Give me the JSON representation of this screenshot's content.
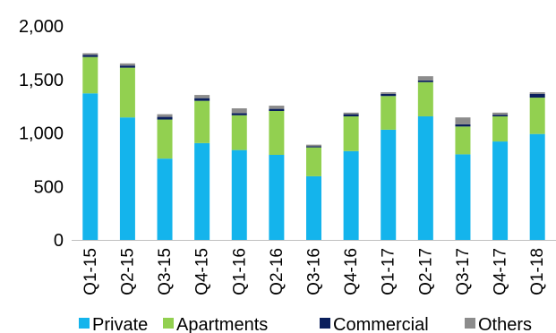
{
  "chart_data": {
    "type": "bar",
    "stacked": true,
    "title": "",
    "xlabel": "",
    "ylabel": "",
    "ylim": [
      0,
      2000
    ],
    "yticks": [
      0,
      500,
      1000,
      1500,
      2000
    ],
    "ytick_labels": [
      "0",
      "500",
      "1,000",
      "1,500",
      "2,000"
    ],
    "grid": false,
    "legend_position": "bottom",
    "categories": [
      "Q1-15",
      "Q2-15",
      "Q3-15",
      "Q4-15",
      "Q1-16",
      "Q2-16",
      "Q3-16",
      "Q4-16",
      "Q1-17",
      "Q2-17",
      "Q3-17",
      "Q4-17",
      "Q1-18"
    ],
    "series": [
      {
        "name": "Private",
        "color": "#14b4ec",
        "values": [
          1370,
          1145,
          760,
          905,
          840,
          795,
          595,
          830,
          1030,
          1155,
          800,
          920,
          990
        ]
      },
      {
        "name": "Apartments",
        "color": "#92d050",
        "values": [
          340,
          465,
          365,
          395,
          325,
          410,
          270,
          325,
          315,
          320,
          260,
          235,
          340
        ]
      },
      {
        "name": "Commercial",
        "color": "#0a1f5c",
        "values": [
          20,
          20,
          25,
          25,
          20,
          20,
          10,
          20,
          20,
          15,
          20,
          15,
          35
        ]
      },
      {
        "name": "Others",
        "color": "#8c8c8c",
        "values": [
          15,
          20,
          25,
          30,
          45,
          30,
          15,
          15,
          15,
          40,
          65,
          20,
          15
        ]
      }
    ]
  }
}
